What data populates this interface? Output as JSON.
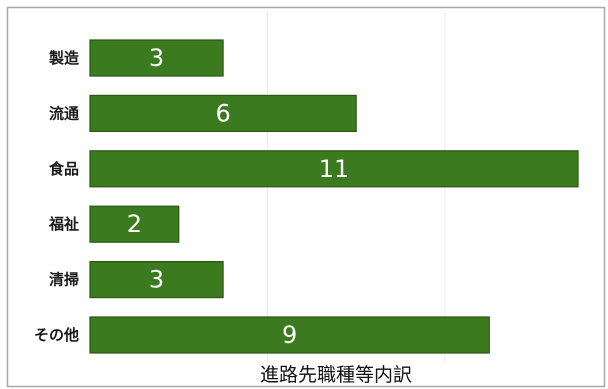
{
  "chart_data": {
    "type": "bar",
    "orientation": "horizontal",
    "categories": [
      "製造",
      "流通",
      "食品",
      "福祉",
      "清掃",
      "その他"
    ],
    "values": [
      3,
      6,
      11,
      2,
      3,
      9
    ],
    "title": "進路先職種等内訳",
    "title_position": "bottom",
    "xlabel": "",
    "ylabel": "",
    "grid": "vertical",
    "data_labels": "inside-center",
    "legend": "none",
    "colors": {
      "bar": "#3b7a1e",
      "bar_edge": "#2a5713",
      "data_label": "#ffffff",
      "frame": "#a8a8a8"
    }
  }
}
